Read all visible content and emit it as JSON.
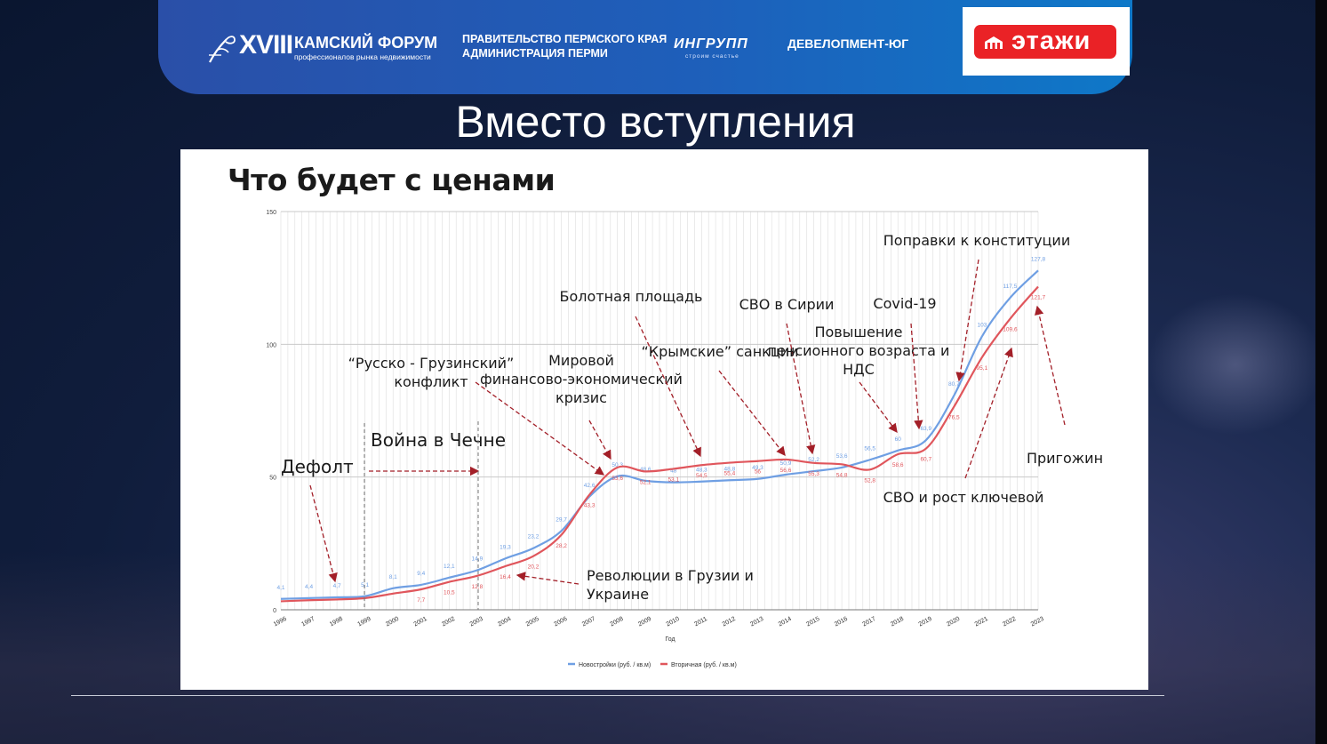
{
  "forum": {
    "title": "XVIII",
    "name": "КАМСКИЙ ФОРУМ",
    "subtitle": "профессионалов рынка недвижимости"
  },
  "partners": {
    "gov_line1": "ПРАВИТЕЛЬСТВО ПЕРМСКОГО КРАЯ",
    "gov_line2": "АДМИНИСТРАЦИЯ ПЕРМИ",
    "ingroup": "ИНГРУПП",
    "ingroup_sub": "строим счастье",
    "developer": "ДЕВЕЛОПМЕНТ-ЮГ",
    "etazhi": "этажи"
  },
  "colors": {
    "banner": "#1e5fba",
    "etazhi_red": "#ea2226",
    "series_new": "#6f9fe3",
    "series_secondary": "#e0565c",
    "annotation_arrow": "#a31f28"
  },
  "slide": {
    "title": "Вместо вступления"
  },
  "chart_data": {
    "type": "line",
    "title": "Что будет с ценами",
    "xlabel": "Год",
    "ylabel": "",
    "ylim": [
      0,
      150
    ],
    "yticks": [
      0,
      50,
      100,
      150
    ],
    "ytick_labels": [
      "0",
      "50",
      "100",
      "150"
    ],
    "grid": true,
    "legend_position": "bottom",
    "categories": [
      "1996",
      "1997",
      "1998",
      "1999",
      "2000",
      "2001",
      "2002",
      "2003",
      "2004",
      "2005",
      "2006",
      "2007",
      "2008",
      "2009",
      "2010",
      "2011",
      "2012",
      "2013",
      "2014",
      "2015",
      "2016",
      "2017",
      "2018",
      "2019",
      "2020",
      "2021",
      "2022",
      "2023"
    ],
    "series": [
      {
        "name": "Новостройки (руб. / кв.м)",
        "color": "#6f9fe3",
        "values": [
          4.1,
          4.4,
          4.7,
          5.1,
          8.1,
          9.4,
          12.1,
          14.9,
          19.3,
          23.2,
          29.7,
          42.6,
          50.3,
          48.6,
          48,
          48.3,
          48.8,
          49.3,
          50.9,
          52.2,
          53.6,
          56.5,
          60,
          63.9,
          80.7,
          103,
          117.5,
          127.8
        ],
        "labels": [
          "4,1",
          "4,4",
          "4,7",
          "5,1",
          "8,1",
          "9,4",
          "12,1",
          "14,9",
          "19,3",
          "23,2",
          "29,7",
          "42,6",
          "50,3",
          "48,6",
          "48",
          "48,3",
          "48,8",
          "49,3",
          "50,9",
          "52,2",
          "53,6",
          "56,5",
          "60",
          "63,9",
          "80,7",
          "103",
          "117,5",
          "127,8"
        ]
      },
      {
        "name": "Вторичная (руб. / кв.м)",
        "color": "#e0565c",
        "values": [
          3.2,
          3.6,
          3.9,
          4.4,
          6.1,
          7.7,
          10.5,
          12.8,
          16.4,
          20.2,
          28.2,
          43.3,
          53.6,
          52.1,
          53.1,
          54.5,
          55.4,
          56,
          56.6,
          55.3,
          54.8,
          52.8,
          58.6,
          60.7,
          76.5,
          95.1,
          109.6,
          121.7
        ],
        "labels": [
          "",
          "",
          "",
          "",
          "",
          "7,7",
          "10,5",
          "12,8",
          "16,4",
          "20,2",
          "28,2",
          "43,3",
          "53,6",
          "52,1",
          "53,1",
          "54,5",
          "55,4",
          "56",
          "56,6",
          "55,3",
          "54,8",
          "52,8",
          "58,6",
          "60,7",
          "76,5",
          "95,1",
          "109,6",
          "121,7"
        ]
      }
    ],
    "annotations": [
      {
        "text_lines": [
          "Дефолт"
        ]
      },
      {
        "text_lines": [
          "Война в Чечне"
        ]
      },
      {
        "text_lines": [
          "“Русско - Грузинский”",
          "конфликт"
        ]
      },
      {
        "text_lines": [
          "Мировой",
          "финансово-экономический",
          "кризис"
        ]
      },
      {
        "text_lines": [
          "Болотная площадь"
        ]
      },
      {
        "text_lines": [
          "“Крымские” санкции"
        ]
      },
      {
        "text_lines": [
          "СВО в Сирии"
        ]
      },
      {
        "text_lines": [
          "Повышение",
          "пенсионного возраста и",
          "НДС"
        ]
      },
      {
        "text_lines": [
          "Covid-19"
        ]
      },
      {
        "text_lines": [
          "Поправки к конституции"
        ]
      },
      {
        "text_lines": [
          "Пригожин"
        ]
      },
      {
        "text_lines": [
          "СВО и рост ключевой"
        ]
      },
      {
        "text_lines": [
          "Революции в Грузии и",
          "Украине"
        ]
      }
    ]
  }
}
